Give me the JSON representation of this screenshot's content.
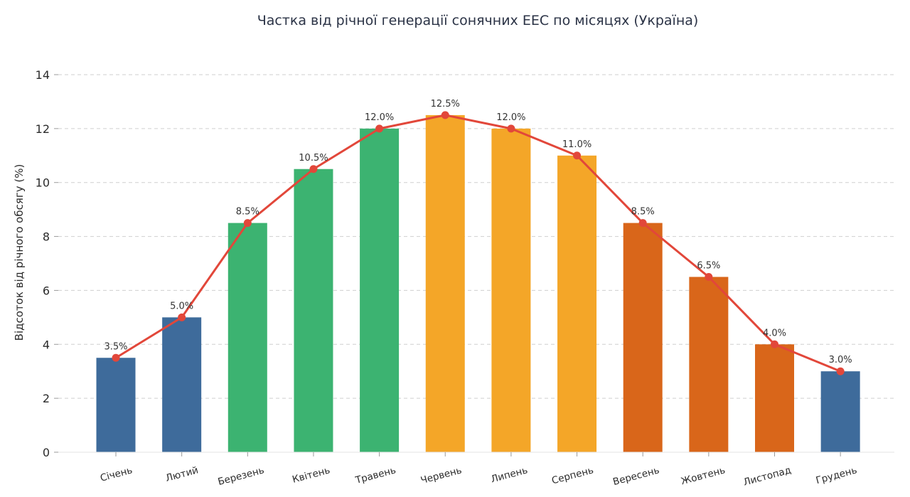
{
  "chart_data": {
    "type": "bar",
    "title": "Частка від річної генерації сонячних ЕЕС по місяцях (Україна)",
    "xlabel": "",
    "ylabel": "Відсоток від річного обсягу (%)",
    "categories": [
      "Січень",
      "Лютий",
      "Березень",
      "Квітень",
      "Травень",
      "Червень",
      "Липень",
      "Серпень",
      "Вересень",
      "Жовтень",
      "Листопад",
      "Грудень"
    ],
    "values": [
      3.5,
      5.0,
      8.5,
      10.5,
      12.0,
      12.5,
      12.0,
      11.0,
      8.5,
      6.5,
      4.0,
      3.0
    ],
    "data_labels": [
      "3.5%",
      "5.0%",
      "8.5%",
      "10.5%",
      "12.0%",
      "12.5%",
      "12.0%",
      "11.0%",
      "8.5%",
      "6.5%",
      "4.0%",
      "3.0%"
    ],
    "bar_colors": [
      "#3e6b9b",
      "#3e6b9b",
      "#3cb371",
      "#3cb371",
      "#3cb371",
      "#f4a628",
      "#f4a628",
      "#f4a628",
      "#d9661a",
      "#d9661a",
      "#d9661a",
      "#3e6b9b"
    ],
    "line_overlay": {
      "values": [
        3.5,
        5.0,
        8.5,
        10.5,
        12.0,
        12.5,
        12.0,
        11.0,
        8.5,
        6.5,
        4.0,
        3.0
      ],
      "color": "#e2473a"
    },
    "ylim": [
      0,
      14
    ],
    "yticks": [
      0,
      2,
      4,
      6,
      8,
      10,
      12,
      14
    ],
    "grid": true,
    "grid_style": "dashed-horizontal",
    "legend": "none"
  }
}
